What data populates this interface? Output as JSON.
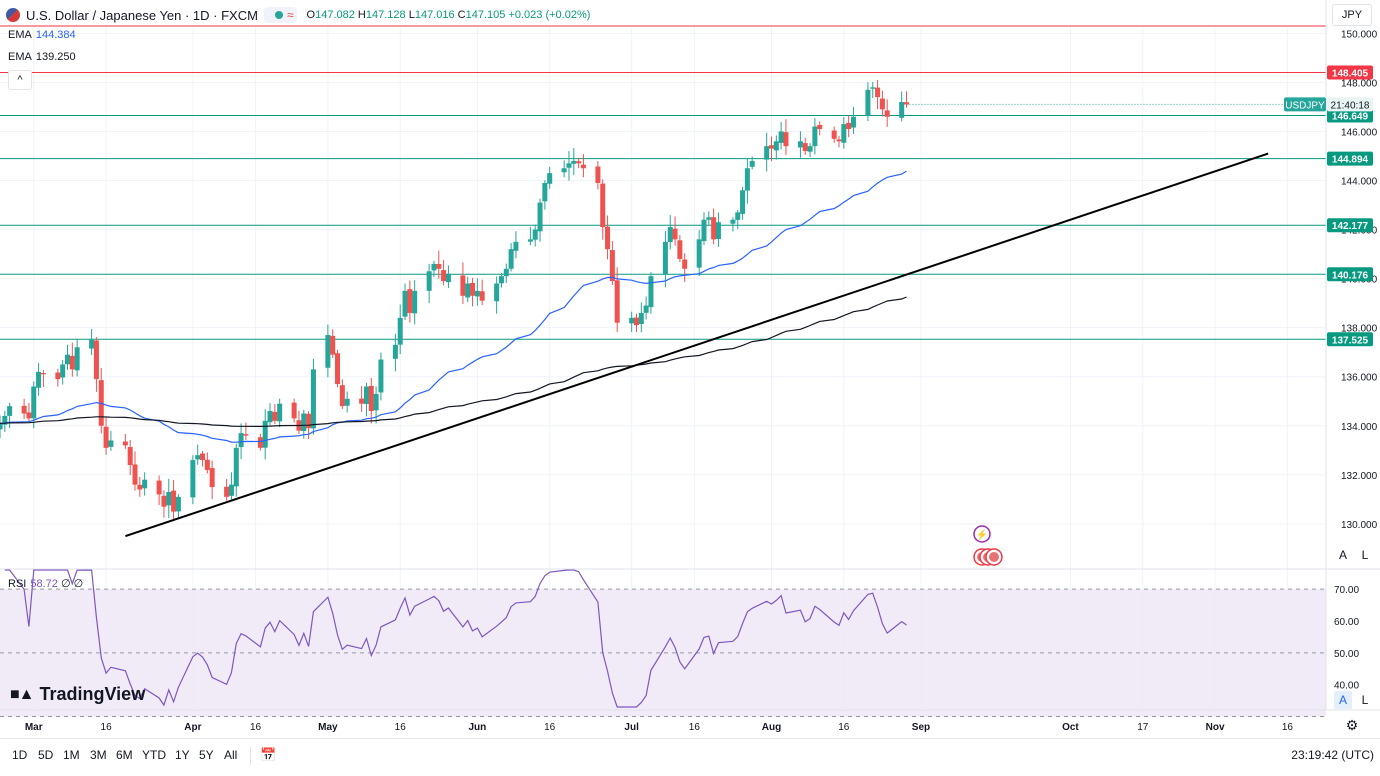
{
  "header": {
    "symbol_title": "U.S. Dollar / Japanese Yen · 1D · FXCM",
    "open_label": "O",
    "open": "147.082",
    "high_label": "H",
    "high": "147.128",
    "low_label": "L",
    "low": "147.016",
    "close_label": "C",
    "close": "147.105",
    "change": "+0.023 (+0.02%)",
    "wave_icon": "≈",
    "currency": "JPY",
    "collapse_icon": "^"
  },
  "ema1": {
    "label": "EMA",
    "value": "144.384"
  },
  "ema2": {
    "label": "EMA",
    "value": "139.250"
  },
  "rsi_header": {
    "label": "RSI",
    "value": "58.72",
    "extra": "∅ ∅"
  },
  "toolbar": {
    "timeframes": [
      "1D",
      "5D",
      "1M",
      "3M",
      "6M",
      "YTD",
      "1Y",
      "5Y",
      "All"
    ],
    "clock": "23:19:42 (UTC)"
  },
  "logo_text": "TradingView",
  "scale_buttons": {
    "auto": "A",
    "log": "L"
  },
  "colors": {
    "up": "#26a69a",
    "down": "#ef5350",
    "ema_fast": "#2962ff",
    "ema_slow": "#131722",
    "rsi_line": "#7e57c2",
    "rsi_band": "#ede7f6",
    "level_green": "#089981",
    "level_red": "#f23645",
    "trendline": "#000000"
  },
  "chart_data": [
    {
      "type": "candlestick",
      "title": "U.S. Dollar / Japanese Yen · 1D · FXCM",
      "ylim": [
        128.2,
        150.3
      ],
      "x_date_range": [
        "2023-02-22",
        "2023-11-24"
      ],
      "yticks": [
        "130.000",
        "132.000",
        "134.000",
        "136.000",
        "138.000",
        "140.000",
        "142.000",
        "144.000",
        "146.000",
        "148.000",
        "150.000"
      ],
      "xticks": [
        {
          "label": "Mar",
          "date": "2023-03-01"
        },
        {
          "label": "16",
          "date": "2023-03-16"
        },
        {
          "label": "Apr",
          "date": "2023-04-03"
        },
        {
          "label": "16",
          "date": "2023-04-16"
        },
        {
          "label": "May",
          "date": "2023-05-01"
        },
        {
          "label": "16",
          "date": "2023-05-16"
        },
        {
          "label": "Jun",
          "date": "2023-06-01"
        },
        {
          "label": "16",
          "date": "2023-06-16"
        },
        {
          "label": "Jul",
          "date": "2023-07-03"
        },
        {
          "label": "16",
          "date": "2023-07-16"
        },
        {
          "label": "Aug",
          "date": "2023-08-01"
        },
        {
          "label": "16",
          "date": "2023-08-16"
        },
        {
          "label": "Sep",
          "date": "2023-09-01"
        },
        {
          "label": "Oct",
          "date": "2023-10-02"
        },
        {
          "label": "17",
          "date": "2023-10-17"
        },
        {
          "label": "Nov",
          "date": "2023-11-01"
        },
        {
          "label": "16",
          "date": "2023-11-16"
        }
      ],
      "closes": [
        134.1,
        134.4,
        134.8,
        134.5,
        134.3,
        135.6,
        136.2,
        136.1,
        135.9,
        136.5,
        136.9,
        136.3,
        137.2,
        137.5,
        135.9,
        134.0,
        133.1,
        133.4,
        133.2,
        132.4,
        131.6,
        131.4,
        131.8,
        131.2,
        130.7,
        131.3,
        130.5,
        131.1,
        132.6,
        132.8,
        132.6,
        132.2,
        131.5,
        131.1,
        131.6,
        133.1,
        133.7,
        133.6,
        133.1,
        134.2,
        134.6,
        134.2,
        134.9,
        134.3,
        133.8,
        134.5,
        133.9,
        136.3,
        137.7,
        136.9,
        135.7,
        134.8,
        135.1,
        134.9,
        135.6,
        134.6,
        135.3,
        136.7,
        137.3,
        138.4,
        139.5,
        138.6,
        139.5,
        140.3,
        140.6,
        140.4,
        139.9,
        140.2,
        139.3,
        139.8,
        139.3,
        139.5,
        139.1,
        139.8,
        140.1,
        140.4,
        141.2,
        141.5,
        141.6,
        142.0,
        143.1,
        143.9,
        144.3,
        144.5,
        144.7,
        144.8,
        144.7,
        144.5,
        143.9,
        142.1,
        141.2,
        139.9,
        138.2,
        138.4,
        138.1,
        138.6,
        138.9,
        140.1,
        141.5,
        142.1,
        141.6,
        140.8,
        140.4,
        141.6,
        142.4,
        142.5,
        141.6,
        142.3,
        142.4,
        142.7,
        143.6,
        144.5,
        144.8,
        145.4,
        145.3,
        145.6,
        146.0,
        145.4,
        145.6,
        145.2,
        145.4,
        146.2,
        146.1,
        145.7,
        145.6,
        146.3,
        146.1,
        146.6,
        147.7,
        147.8,
        147.4,
        146.9,
        146.6,
        147.2,
        147.1
      ],
      "series": [
        {
          "name": "EMA",
          "period_label": "EMA 144.384",
          "last": 144.384
        },
        {
          "name": "EMA",
          "period_label": "EMA 139.250",
          "last": 139.25
        }
      ],
      "price_lines": [
        {
          "value": 150.3,
          "label": "",
          "color": "#f23645"
        },
        {
          "value": 148.405,
          "label": "148.405",
          "color": "#f23645"
        },
        {
          "value": 146.649,
          "label": "146.649",
          "color": "#089981"
        },
        {
          "value": 144.894,
          "label": "144.894",
          "color": "#089981"
        },
        {
          "value": 142.177,
          "label": "142.177",
          "color": "#089981"
        },
        {
          "value": 140.176,
          "label": "140.176",
          "color": "#089981"
        },
        {
          "value": 137.525,
          "label": "137.525",
          "color": "#089981"
        }
      ],
      "trendline": {
        "from": {
          "date": "2023-03-20",
          "value": 129.5
        },
        "to": {
          "date": "2023-11-12",
          "value": 145.1
        }
      },
      "last_price_tag": {
        "symbol": "USDJPY",
        "time": "21:40:18",
        "value": 147.105
      },
      "grid": true
    },
    {
      "type": "line",
      "title": "RSI",
      "ylim": [
        33,
        76
      ],
      "yticks": [
        "40.00",
        "50.00",
        "60.00",
        "70.00"
      ],
      "band": [
        30,
        70
      ],
      "dashed_levels": [
        70,
        50,
        30
      ],
      "last": 58.72
    }
  ]
}
